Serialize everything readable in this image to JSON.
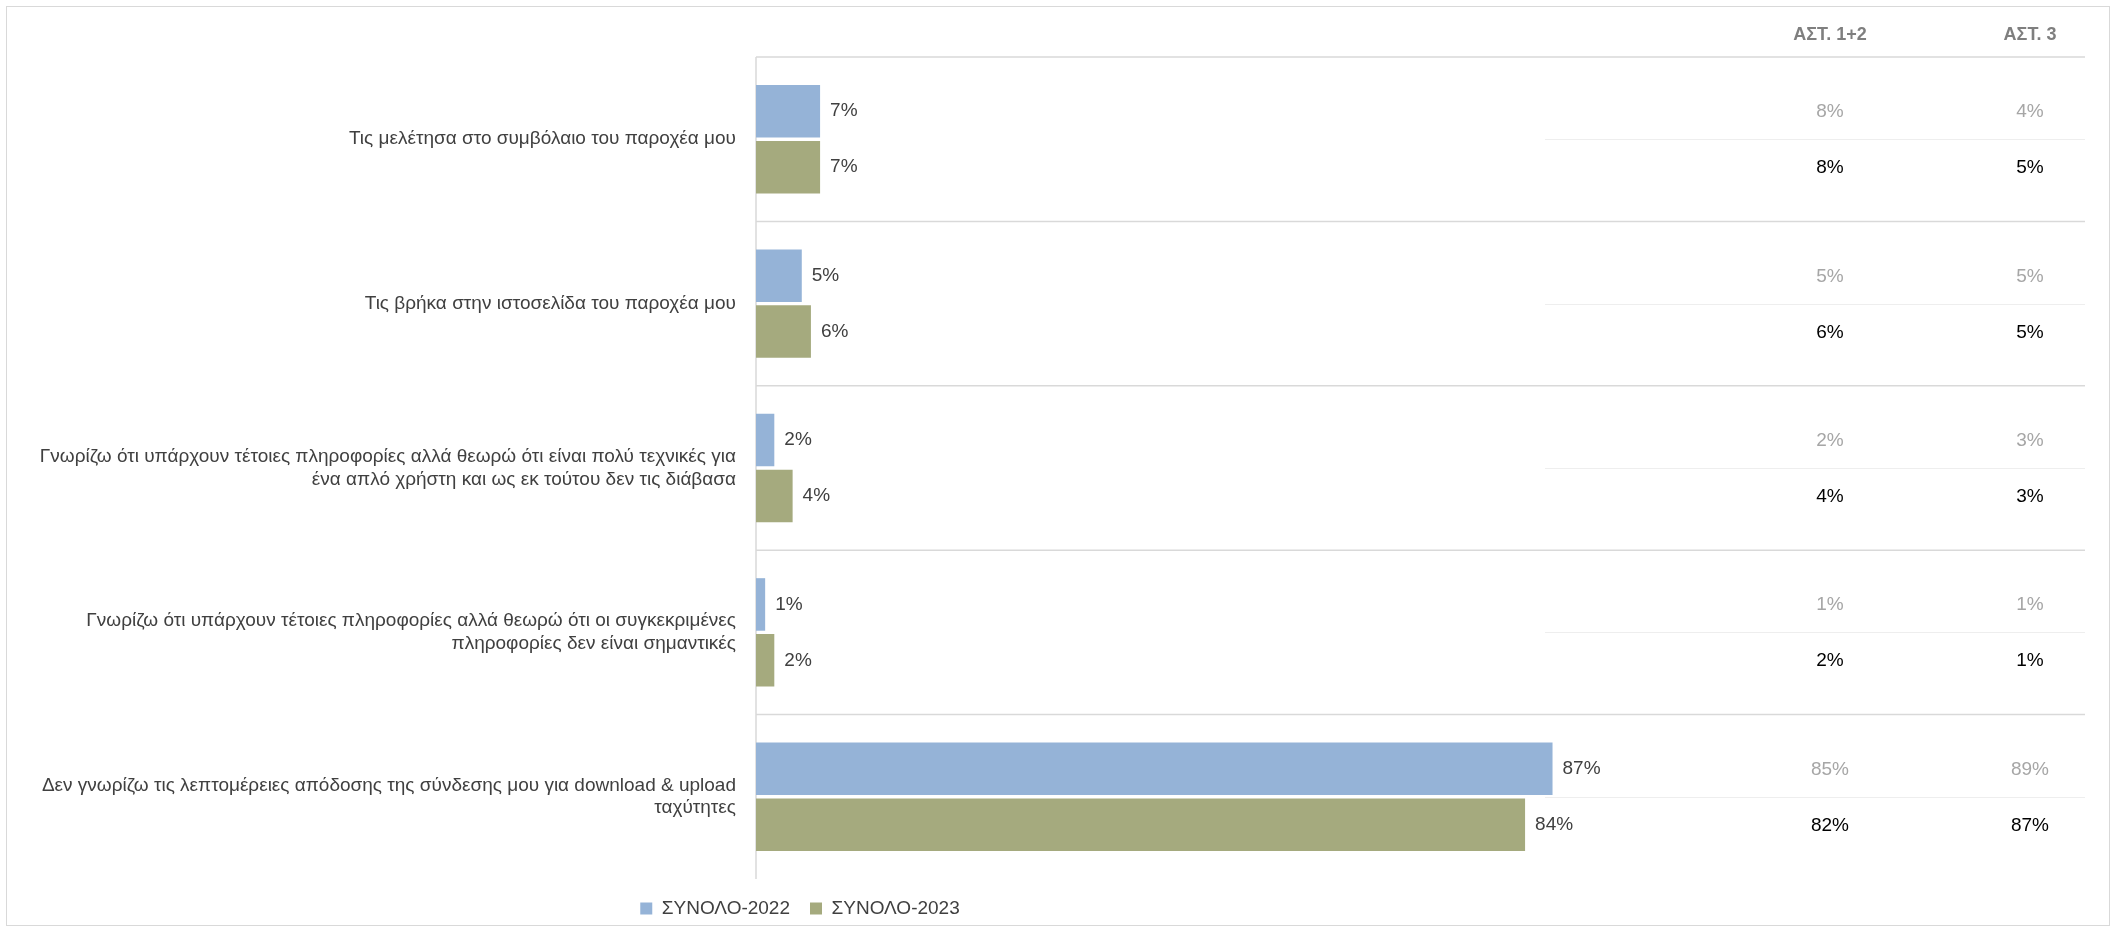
{
  "chart_data": [
    {
      "type": "bar",
      "orientation": "horizontal",
      "categories": [
        "Τις μελέτησα στο συμβόλαιο του παροχέα μου",
        "Τις βρήκα στην ιστοσελίδα του παροχέα μου",
        "Γνωρίζω ότι υπάρχουν τέτοιες πληροφορίες αλλά θεωρώ ότι είναι πολύ τεχνικές για ένα απλό χρήστη και ως εκ τούτου δεν τις διάβασα",
        "Γνωρίζω ότι υπάρχουν τέτοιες πληροφορίες αλλά θεωρώ ότι οι συγκεκριμένες πληροφορίες δεν είναι σημαντικές",
        "Δεν γνωρίζω τις λεπτομέρειες απόδοσης της σύνδεσης μου για download & upload ταχύτητες"
      ],
      "series": [
        {
          "name": "ΣΥΝΟΛΟ-2022",
          "color": "#95b3d7",
          "values": [
            7,
            5,
            2,
            1,
            87
          ],
          "value_labels": [
            "7%",
            "5%",
            "2%",
            "1%",
            "87%"
          ]
        },
        {
          "name": "ΣΥΝΟΛΟ-2023",
          "color": "#a5aa7e",
          "values": [
            7,
            6,
            4,
            2,
            84
          ],
          "value_labels": [
            "7%",
            "6%",
            "4%",
            "2%",
            "84%"
          ]
        }
      ],
      "tick_labels": "y",
      "grid": "y",
      "legend": "bottom"
    },
    {
      "type": "other",
      "categories": [
        "ΑΣΤ. 1+2",
        "ΑΣΤ. 3"
      ],
      "series": [
        {
          "color": "#a6a6a6",
          "values": [
            8,
            4
          ],
          "value_labels": [
            "8%",
            "4%"
          ]
        },
        {
          "color": "#000000",
          "values": [
            8,
            5
          ],
          "value_labels": [
            "8%",
            "5%"
          ]
        },
        {
          "color": "#a6a6a6",
          "values": [
            5,
            5
          ],
          "value_labels": [
            "5%",
            "5%"
          ]
        },
        {
          "color": "#000000",
          "values": [
            6,
            5
          ],
          "value_labels": [
            "6%",
            "5%"
          ]
        },
        {
          "color": "#a6a6a6",
          "values": [
            2,
            3
          ],
          "value_labels": [
            "2%",
            "3%"
          ]
        },
        {
          "color": "#000000",
          "values": [
            4,
            3
          ],
          "value_labels": [
            "4%",
            "3%"
          ]
        },
        {
          "color": "#a6a6a6",
          "values": [
            1,
            1
          ],
          "value_labels": [
            "1%",
            "1%"
          ]
        },
        {
          "color": "#000000",
          "values": [
            2,
            1
          ],
          "value_labels": [
            "2%",
            "1%"
          ]
        },
        {
          "color": "#a6a6a6",
          "values": [
            85,
            89
          ],
          "value_labels": [
            "85%",
            "89%"
          ]
        },
        {
          "color": "#000000",
          "values": [
            82,
            87
          ],
          "value_labels": [
            "82%",
            "87%"
          ]
        }
      ]
    }
  ]
}
